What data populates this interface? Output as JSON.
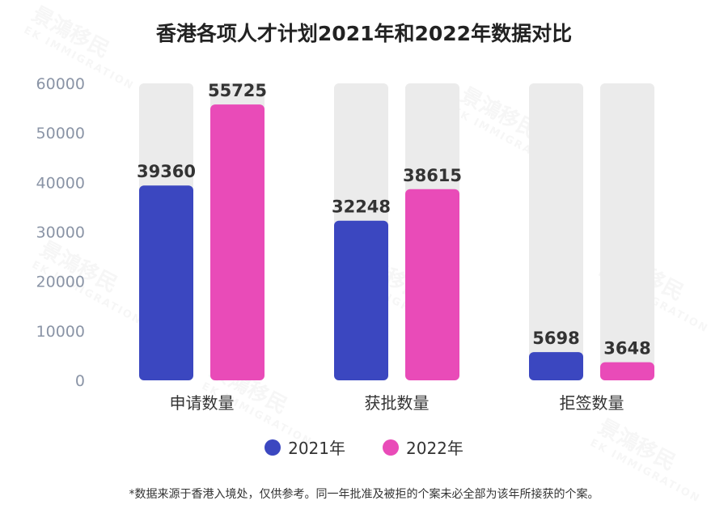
{
  "title": "香港各项人才计划2021年和2022年数据对比",
  "footnote": "*数据来源于香港入境处，仅供参考。同一年批准及被拒的个案未必全部为该年所接获的个案。",
  "watermark": {
    "brand": "景鴻移民",
    "brand_en": "EK IMMIGRATION"
  },
  "colors": {
    "series_2021": "#3b47c0",
    "series_2022": "#e94bb8",
    "bar_track": "#ebebeb",
    "axis_text": "#8a94a6",
    "label_text": "#333333"
  },
  "chart_data": {
    "type": "bar",
    "title": "香港各项人才计划2021年和2022年数据对比",
    "categories": [
      "申请数量",
      "获批数量",
      "拒签数量"
    ],
    "series": [
      {
        "name": "2021年",
        "values": [
          39360,
          32248,
          5698
        ]
      },
      {
        "name": "2022年",
        "values": [
          55725,
          38615,
          3648
        ]
      }
    ],
    "ylim": [
      0,
      60000
    ],
    "yticks": [
      0,
      10000,
      20000,
      30000,
      40000,
      50000,
      60000
    ],
    "xlabel": "",
    "ylabel": "",
    "grid": false,
    "legend_position": "bottom",
    "data_labels": true
  }
}
